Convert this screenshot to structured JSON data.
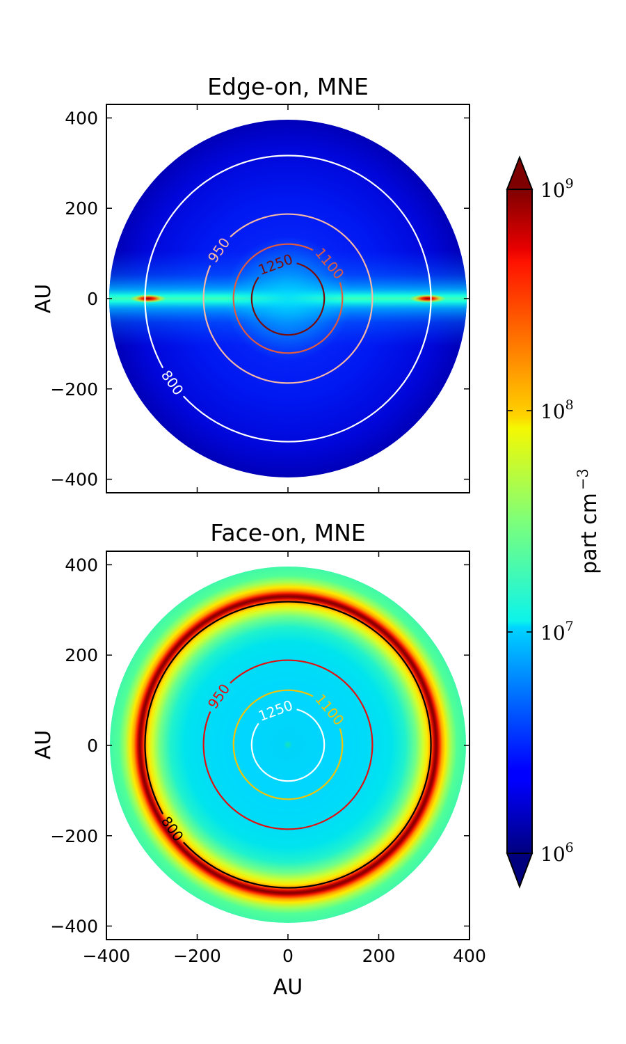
{
  "chart_data": [
    {
      "type": "heatmap",
      "title": "Edge-on, MNE",
      "xlabel": "",
      "ylabel": "AU",
      "xlim": [
        -400,
        400
      ],
      "ylim": [
        -430,
        430
      ],
      "x_ticks": [
        -400,
        -200,
        0,
        200,
        400
      ],
      "y_ticks": [
        400,
        200,
        0,
        -200,
        -400
      ],
      "y_tick_labels": [
        "400",
        "200",
        "0",
        "−200",
        "−400"
      ],
      "disk_radius_au": 393,
      "colormap": "jet",
      "density_description": "background ~2e6 part cm^-3 rising toward midplane; thin midplane layer ~1e7; hot spots near x=±305 AU",
      "contours": [
        {
          "label": "800",
          "radius_au": 315,
          "color": "#ffffff"
        },
        {
          "label": "950",
          "radius_au": 186,
          "color": "#f4b6a6"
        },
        {
          "label": "1100",
          "radius_au": 120,
          "color": "#e05a42"
        },
        {
          "label": "1250",
          "radius_au": 80,
          "color": "#7a0a0a"
        }
      ]
    },
    {
      "type": "heatmap",
      "title": "Face-on, MNE",
      "xlabel": "AU",
      "ylabel": "AU",
      "xlim": [
        -400,
        400
      ],
      "ylim": [
        -430,
        430
      ],
      "x_ticks": [
        -400,
        -200,
        0,
        200,
        400
      ],
      "x_tick_labels": [
        "−400",
        "−200",
        "0",
        "200",
        "400"
      ],
      "y_ticks": [
        400,
        200,
        0,
        -200,
        -400
      ],
      "y_tick_labels": [
        "400",
        "200",
        "0",
        "−200",
        "−400"
      ],
      "disk_radius_au": 393,
      "colormap": "jet",
      "density_description": "inner ~1e7 part cm^-3; peak ring ~1e9 at r≈305 AU; outer ~3e7",
      "contours": [
        {
          "label": "800",
          "radius_au": 315,
          "color": "#000000"
        },
        {
          "label": "950",
          "radius_au": 186,
          "color": "#e01010"
        },
        {
          "label": "1100",
          "radius_au": 120,
          "color": "#f2c20a"
        },
        {
          "label": "1250",
          "radius_au": 80,
          "color": "#ffffff"
        }
      ]
    }
  ],
  "colorbar": {
    "label_text": "part cm",
    "label_exponent": "−3",
    "scale": "log",
    "range": [
      1000000,
      1000000000
    ],
    "extend": "both",
    "ticks": [
      {
        "base": "10",
        "exp": "9"
      },
      {
        "base": "10",
        "exp": "8"
      },
      {
        "base": "10",
        "exp": "7"
      },
      {
        "base": "10",
        "exp": "6"
      }
    ]
  }
}
